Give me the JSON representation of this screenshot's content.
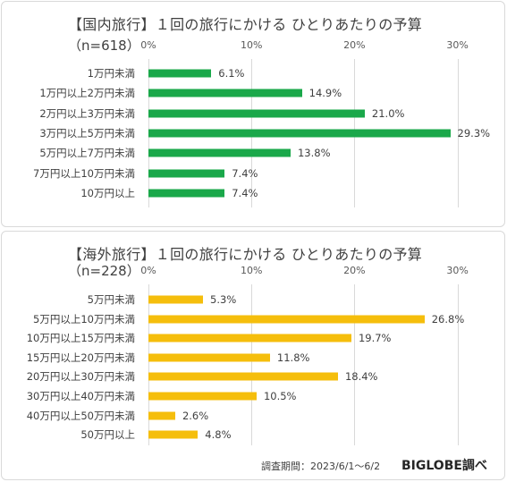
{
  "colors": {
    "chart1_bar": "#1aa84a",
    "chart2_bar": "#f5be0c"
  },
  "chart_data": [
    {
      "type": "bar",
      "orientation": "horizontal",
      "title": "【国内旅行】１回の旅行にかける ひとりあたりの予算",
      "subtitle": "（n=618）",
      "x_ticks": [
        "0%",
        "10%",
        "20%",
        "30%"
      ],
      "xlim": [
        0,
        30
      ],
      "categories": [
        "1万円未満",
        "1万円以上2万円未満",
        "2万円以上3万円未満",
        "3万円以上5万円未満",
        "5万円以上7万円未満",
        "7万円以上10万円未満",
        "10万円以上"
      ],
      "values": [
        6.1,
        14.9,
        21.0,
        29.3,
        13.8,
        7.4,
        7.4
      ],
      "value_labels": [
        "6.1%",
        "14.9%",
        "21.0%",
        "29.3%",
        "13.8%",
        "7.4%",
        "7.4%"
      ]
    },
    {
      "type": "bar",
      "orientation": "horizontal",
      "title": "【海外旅行】１回の旅行にかける ひとりあたりの予算",
      "subtitle": "（n=228）",
      "x_ticks": [
        "0%",
        "10%",
        "20%",
        "30%"
      ],
      "xlim": [
        0,
        30
      ],
      "categories": [
        "5万円未満",
        "5万円以上10万円未満",
        "10万円以上15万円未満",
        "15万円以上20万円未満",
        "20万円以上30万円未満",
        "30万円以上40万円未満",
        "40万円以上50万円未満",
        "50万円以上"
      ],
      "values": [
        5.3,
        26.8,
        19.7,
        11.8,
        18.4,
        10.5,
        2.6,
        4.8
      ],
      "value_labels": [
        "5.3%",
        "26.8%",
        "19.7%",
        "11.8%",
        "18.4%",
        "10.5%",
        "2.6%",
        "4.8%"
      ]
    }
  ],
  "footer": {
    "source": "調査期間：2023/6/1〜6/2",
    "brand": "BIGLOBE調べ"
  }
}
